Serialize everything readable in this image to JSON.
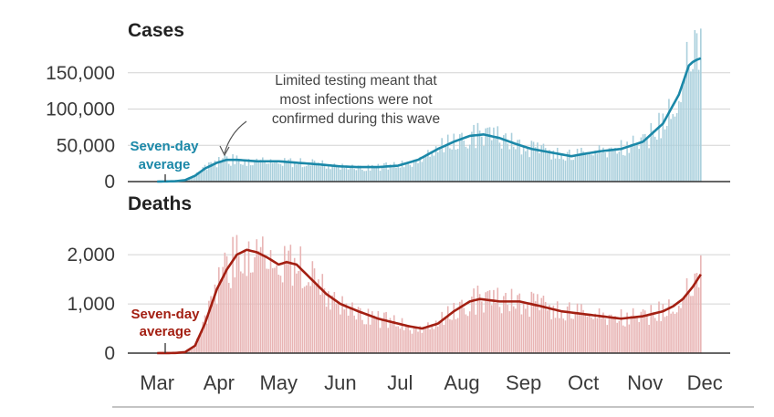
{
  "chart_data": [
    {
      "type": "bar",
      "title": "Cases",
      "ylim": [
        0,
        190000
      ],
      "yticks": [
        0,
        50000,
        100000,
        150000
      ],
      "ytick_labels": [
        "0",
        "50,000",
        "100,000",
        "150,000"
      ],
      "x_axis": {
        "start": "2020-02-29",
        "end": "2020-11-30",
        "tick_labels": [
          "Mar",
          "Apr",
          "May",
          "Jun",
          "Jul",
          "Aug",
          "Sep",
          "Oct",
          "Nov",
          "Dec"
        ]
      },
      "grid": true,
      "colors": {
        "bars": "#a9cfdc",
        "average": "#1b88a8"
      },
      "average_label": [
        "Seven-day",
        "average"
      ],
      "annotation": [
        "Limited testing meant that",
        "most infections were not",
        "confirmed during this wave"
      ],
      "series": [
        {
          "kind": "bars",
          "points": [
            [
              "2020-03-01",
              0
            ],
            [
              "2020-03-10",
              500
            ],
            [
              "2020-03-15",
              2000
            ],
            [
              "2020-03-20",
              8000
            ],
            [
              "2020-03-25",
              18000
            ],
            [
              "2020-03-31",
              26000
            ],
            [
              "2020-04-05",
              30000
            ],
            [
              "2020-04-10",
              30000
            ],
            [
              "2020-04-20",
              28000
            ],
            [
              "2020-05-01",
              28000
            ],
            [
              "2020-05-10",
              26000
            ],
            [
              "2020-05-20",
              24000
            ],
            [
              "2020-06-01",
              21000
            ],
            [
              "2020-06-10",
              20000
            ],
            [
              "2020-06-20",
              20000
            ],
            [
              "2020-06-30",
              22000
            ],
            [
              "2020-07-10",
              30000
            ],
            [
              "2020-07-20",
              45000
            ],
            [
              "2020-07-28",
              55000
            ],
            [
              "2020-08-05",
              63000
            ],
            [
              "2020-08-12",
              65000
            ],
            [
              "2020-08-20",
              60000
            ],
            [
              "2020-08-28",
              52000
            ],
            [
              "2020-09-05",
              45000
            ],
            [
              "2020-09-15",
              40000
            ],
            [
              "2020-09-25",
              35000
            ],
            [
              "2020-10-01",
              38000
            ],
            [
              "2020-10-10",
              42000
            ],
            [
              "2020-10-20",
              45000
            ],
            [
              "2020-10-31",
              55000
            ],
            [
              "2020-11-10",
              80000
            ],
            [
              "2020-11-18",
              120000
            ],
            [
              "2020-11-23",
              160000
            ],
            [
              "2020-11-25",
              180000
            ],
            [
              "2020-11-27",
              185000
            ],
            [
              "2020-11-29",
              170000
            ]
          ]
        },
        {
          "kind": "average",
          "points": [
            [
              "2020-03-01",
              0
            ],
            [
              "2020-03-10",
              500
            ],
            [
              "2020-03-15",
              2000
            ],
            [
              "2020-03-20",
              8000
            ],
            [
              "2020-03-25",
              18000
            ],
            [
              "2020-03-31",
              26000
            ],
            [
              "2020-04-05",
              30000
            ],
            [
              "2020-04-10",
              30000
            ],
            [
              "2020-04-20",
              28000
            ],
            [
              "2020-05-01",
              28000
            ],
            [
              "2020-05-10",
              26000
            ],
            [
              "2020-05-20",
              24000
            ],
            [
              "2020-06-01",
              21000
            ],
            [
              "2020-06-10",
              20000
            ],
            [
              "2020-06-20",
              20000
            ],
            [
              "2020-06-30",
              22000
            ],
            [
              "2020-07-10",
              30000
            ],
            [
              "2020-07-20",
              45000
            ],
            [
              "2020-07-28",
              55000
            ],
            [
              "2020-08-05",
              63000
            ],
            [
              "2020-08-12",
              65000
            ],
            [
              "2020-08-20",
              60000
            ],
            [
              "2020-08-28",
              52000
            ],
            [
              "2020-09-05",
              45000
            ],
            [
              "2020-09-15",
              40000
            ],
            [
              "2020-09-25",
              35000
            ],
            [
              "2020-10-01",
              38000
            ],
            [
              "2020-10-10",
              42000
            ],
            [
              "2020-10-20",
              45000
            ],
            [
              "2020-10-31",
              55000
            ],
            [
              "2020-11-10",
              80000
            ],
            [
              "2020-11-18",
              120000
            ],
            [
              "2020-11-23",
              160000
            ],
            [
              "2020-11-25",
              165000
            ],
            [
              "2020-11-27",
              168000
            ],
            [
              "2020-11-29",
              170000
            ]
          ]
        }
      ]
    },
    {
      "type": "bar",
      "title": "Deaths",
      "ylim": [
        0,
        2800
      ],
      "yticks": [
        0,
        1000,
        2000
      ],
      "ytick_labels": [
        "0",
        "1,000",
        "2,000"
      ],
      "x_axis": {
        "start": "2020-02-29",
        "end": "2020-11-30",
        "tick_labels": [
          "Mar",
          "Apr",
          "May",
          "Jun",
          "Jul",
          "Aug",
          "Sep",
          "Oct",
          "Nov",
          "Dec"
        ]
      },
      "grid": true,
      "colors": {
        "bars": "#e8b4b4",
        "average": "#a31f12"
      },
      "average_label": [
        "Seven-day",
        "average"
      ],
      "series": [
        {
          "kind": "bars",
          "points": [
            [
              "2020-03-01",
              0
            ],
            [
              "2020-03-10",
              3
            ],
            [
              "2020-03-15",
              20
            ],
            [
              "2020-03-20",
              150
            ],
            [
              "2020-03-25",
              600
            ],
            [
              "2020-03-31",
              1300
            ],
            [
              "2020-04-05",
              1700
            ],
            [
              "2020-04-10",
              2000
            ],
            [
              "2020-04-15",
              2100
            ],
            [
              "2020-04-20",
              2050
            ],
            [
              "2020-04-25",
              1950
            ],
            [
              "2020-05-01",
              1800
            ],
            [
              "2020-05-05",
              1850
            ],
            [
              "2020-05-10",
              1800
            ],
            [
              "2020-05-15",
              1600
            ],
            [
              "2020-05-20",
              1400
            ],
            [
              "2020-05-25",
              1200
            ],
            [
              "2020-06-01",
              1000
            ],
            [
              "2020-06-10",
              850
            ],
            [
              "2020-06-20",
              700
            ],
            [
              "2020-06-30",
              600
            ],
            [
              "2020-07-05",
              550
            ],
            [
              "2020-07-12",
              500
            ],
            [
              "2020-07-20",
              600
            ],
            [
              "2020-07-28",
              850
            ],
            [
              "2020-08-05",
              1050
            ],
            [
              "2020-08-10",
              1100
            ],
            [
              "2020-08-20",
              1050
            ],
            [
              "2020-08-30",
              1050
            ],
            [
              "2020-09-10",
              950
            ],
            [
              "2020-09-20",
              850
            ],
            [
              "2020-09-30",
              800
            ],
            [
              "2020-10-10",
              750
            ],
            [
              "2020-10-20",
              700
            ],
            [
              "2020-10-31",
              750
            ],
            [
              "2020-11-05",
              800
            ],
            [
              "2020-11-10",
              850
            ],
            [
              "2020-11-15",
              950
            ],
            [
              "2020-11-20",
              1100
            ],
            [
              "2020-11-25",
              1350
            ],
            [
              "2020-11-29",
              1600
            ]
          ]
        },
        {
          "kind": "average",
          "points": [
            [
              "2020-03-01",
              0
            ],
            [
              "2020-03-10",
              3
            ],
            [
              "2020-03-15",
              20
            ],
            [
              "2020-03-20",
              150
            ],
            [
              "2020-03-25",
              600
            ],
            [
              "2020-03-31",
              1300
            ],
            [
              "2020-04-05",
              1700
            ],
            [
              "2020-04-10",
              2000
            ],
            [
              "2020-04-15",
              2100
            ],
            [
              "2020-04-20",
              2050
            ],
            [
              "2020-04-25",
              1950
            ],
            [
              "2020-05-01",
              1800
            ],
            [
              "2020-05-05",
              1850
            ],
            [
              "2020-05-10",
              1800
            ],
            [
              "2020-05-15",
              1600
            ],
            [
              "2020-05-20",
              1400
            ],
            [
              "2020-05-25",
              1200
            ],
            [
              "2020-06-01",
              1000
            ],
            [
              "2020-06-10",
              850
            ],
            [
              "2020-06-20",
              700
            ],
            [
              "2020-06-30",
              600
            ],
            [
              "2020-07-05",
              550
            ],
            [
              "2020-07-12",
              500
            ],
            [
              "2020-07-20",
              600
            ],
            [
              "2020-07-28",
              850
            ],
            [
              "2020-08-05",
              1050
            ],
            [
              "2020-08-10",
              1100
            ],
            [
              "2020-08-20",
              1050
            ],
            [
              "2020-08-30",
              1050
            ],
            [
              "2020-09-10",
              950
            ],
            [
              "2020-09-20",
              850
            ],
            [
              "2020-09-30",
              800
            ],
            [
              "2020-10-10",
              750
            ],
            [
              "2020-10-20",
              700
            ],
            [
              "2020-10-31",
              750
            ],
            [
              "2020-11-05",
              800
            ],
            [
              "2020-11-10",
              850
            ],
            [
              "2020-11-15",
              950
            ],
            [
              "2020-11-20",
              1100
            ],
            [
              "2020-11-25",
              1350
            ],
            [
              "2020-11-29",
              1600
            ]
          ]
        }
      ]
    }
  ]
}
